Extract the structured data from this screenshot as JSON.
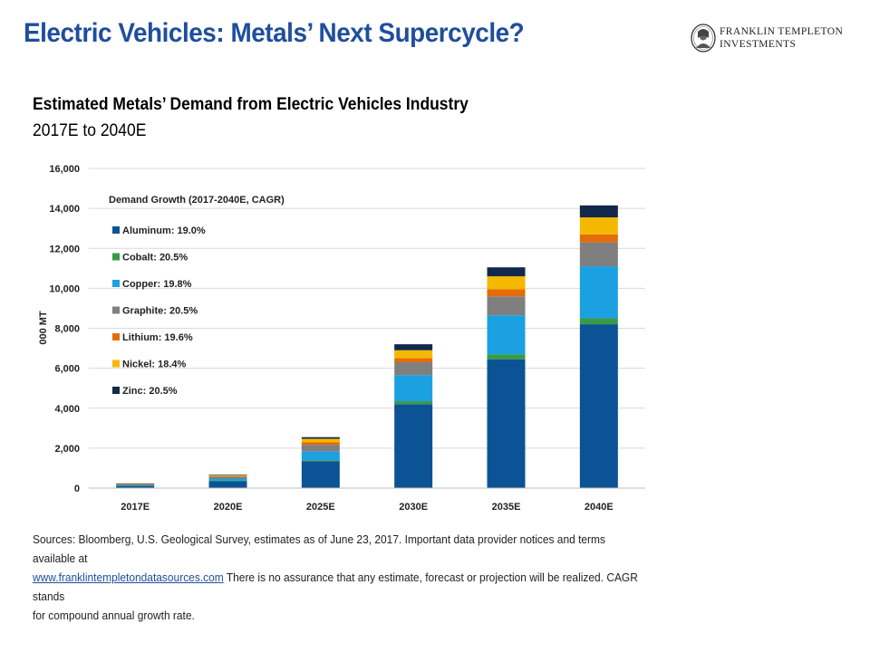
{
  "header": {
    "title": "Electric Vehicles: Metals’ Next Supercycle?",
    "brand_line1": "FRANKLIN TEMPLETON",
    "brand_line2": "INVESTMENTS"
  },
  "chart_data": {
    "type": "bar",
    "stacked": true,
    "title": "Estimated Metals’ Demand from Electric Vehicles Industry",
    "subtitle": "2017E to 2040E",
    "ylabel": "000 MT",
    "ylim": [
      0,
      16000
    ],
    "yticks": [
      0,
      2000,
      4000,
      6000,
      8000,
      10000,
      12000,
      14000,
      16000
    ],
    "ytick_labels": [
      "0",
      "2,000",
      "4,000",
      "6,000",
      "8,000",
      "10,000",
      "12,000",
      "14,000",
      "16,000"
    ],
    "grid": true,
    "legend_title": "Demand Growth (2017-2040E, CAGR)",
    "legend_position": "top-left",
    "categories": [
      "2017E",
      "2020E",
      "2025E",
      "2030E",
      "2035E",
      "2040E"
    ],
    "series": [
      {
        "name": "Aluminum: 19.0%",
        "color": "#0b5394",
        "values": [
          120,
          350,
          1350,
          4200,
          6450,
          8200
        ]
      },
      {
        "name": "Cobalt: 20.5%",
        "color": "#3a9a48",
        "values": [
          5,
          15,
          50,
          150,
          250,
          300
        ]
      },
      {
        "name": "Copper: 19.8%",
        "color": "#1ba1e2",
        "values": [
          40,
          110,
          430,
          1300,
          1950,
          2600
        ]
      },
      {
        "name": "Graphite: 20.5%",
        "color": "#7f7f7f",
        "values": [
          30,
          85,
          340,
          650,
          950,
          1200
        ]
      },
      {
        "name": "Lithium: 19.6%",
        "color": "#e46c0a",
        "values": [
          10,
          30,
          120,
          200,
          350,
          400
        ]
      },
      {
        "name": "Nickel: 18.4%",
        "color": "#f5b800",
        "values": [
          20,
          50,
          180,
          400,
          650,
          850
        ]
      },
      {
        "name": "Zinc: 20.5%",
        "color": "#13294b",
        "values": [
          10,
          30,
          80,
          300,
          450,
          600
        ]
      }
    ]
  },
  "footnote": {
    "line1": "Sources: Bloomberg, U.S. Geological Survey, estimates as of June 23, 2017. Important data provider notices and terms available at",
    "link": "www.franklintempletondatasources.com",
    "line2_rest": " There is no assurance that any estimate, forecast or projection will be realized. CAGR stands",
    "line3": "for compound annual growth rate."
  }
}
